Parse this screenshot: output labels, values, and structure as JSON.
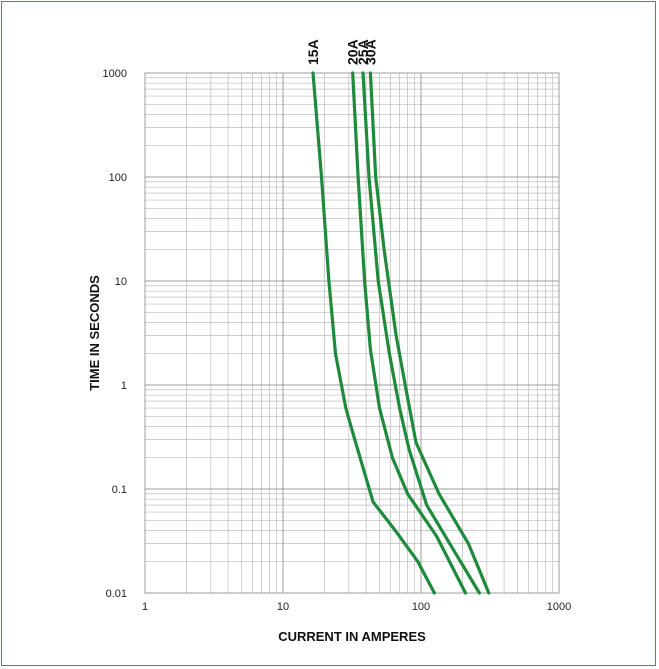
{
  "chart_data": {
    "type": "line",
    "title": "",
    "xlabel": "CURRENT IN AMPERES",
    "ylabel": "TIME IN SECONDS",
    "xscale": "log",
    "yscale": "log",
    "xlim": [
      1,
      1000
    ],
    "ylim": [
      0.01,
      1000
    ],
    "grid": true,
    "x_ticks": [
      "1",
      "10",
      "100",
      "1000"
    ],
    "y_ticks": [
      "0.01",
      "0.1",
      "1",
      "10",
      "100",
      "1000"
    ],
    "line_color": "#1f8a3c",
    "grid_color": "#bdbdbd",
    "border_color": "#2f9a63",
    "series": [
      {
        "name": "15A",
        "points": [
          [
            16.5,
            1000
          ],
          [
            19,
            100
          ],
          [
            21.5,
            10
          ],
          [
            24,
            2
          ],
          [
            28.5,
            0.6
          ],
          [
            32,
            0.35
          ],
          [
            45,
            0.075
          ],
          [
            65,
            0.04
          ],
          [
            95,
            0.02
          ],
          [
            125,
            0.01
          ]
        ]
      },
      {
        "name": "20A",
        "points": [
          [
            32,
            1000
          ],
          [
            35,
            100
          ],
          [
            39,
            10
          ],
          [
            43,
            2.2
          ],
          [
            50,
            0.6
          ],
          [
            62,
            0.2
          ],
          [
            80,
            0.09
          ],
          [
            130,
            0.035
          ],
          [
            210,
            0.01
          ]
        ]
      },
      {
        "name": "25A",
        "points": [
          [
            38,
            1000
          ],
          [
            42,
            100
          ],
          [
            49,
            10
          ],
          [
            59,
            2
          ],
          [
            70,
            0.6
          ],
          [
            82,
            0.24
          ],
          [
            110,
            0.07
          ],
          [
            175,
            0.025
          ],
          [
            265,
            0.01
          ]
        ]
      },
      {
        "name": "30A",
        "points": [
          [
            43,
            1000
          ],
          [
            47,
            100
          ],
          [
            54,
            20
          ],
          [
            66,
            3
          ],
          [
            78,
            0.9
          ],
          [
            92,
            0.28
          ],
          [
            135,
            0.09
          ],
          [
            220,
            0.03
          ],
          [
            310,
            0.01
          ]
        ]
      }
    ]
  }
}
